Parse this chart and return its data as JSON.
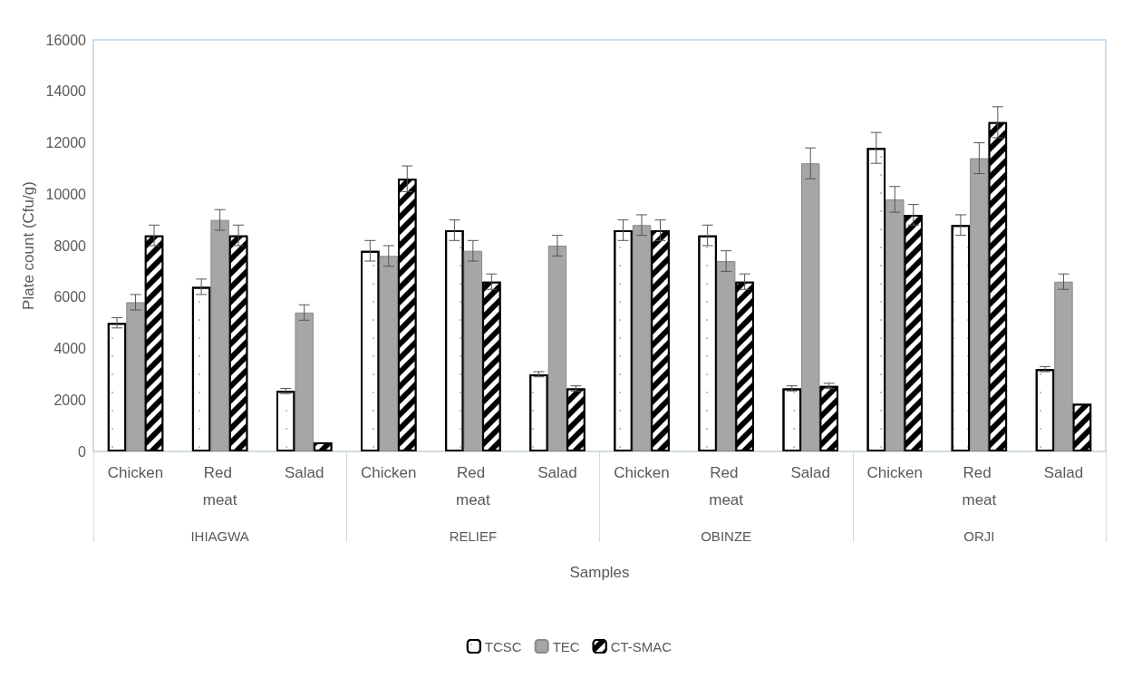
{
  "chart_data": {
    "type": "bar",
    "xlabel": "Samples",
    "ylabel": "Plate count (Cfu/g)",
    "categories": [
      "Chicken",
      "Red meat",
      "Salad",
      "Chicken",
      "Red meat",
      "Salad",
      "Chicken",
      "Red meat",
      "Salad",
      "Chicken",
      "Red meat",
      "Salad"
    ],
    "annotations": [
      "IHIAGWA",
      "RELIEF",
      "OBINZE",
      "ORJI"
    ],
    "series": [
      {
        "name": "TCSC",
        "color": "#ffffff",
        "values": [
          5000,
          6400,
          2350,
          7800,
          8600,
          3000,
          8600,
          8400,
          2450,
          11800,
          8800,
          3200
        ],
        "errors": [
          200,
          300,
          100,
          400,
          400,
          100,
          400,
          400,
          100,
          600,
          400,
          100
        ]
      },
      {
        "name": "TEC",
        "color": "#a6a6a6",
        "values": [
          5800,
          9000,
          5400,
          7600,
          7800,
          8000,
          8800,
          7400,
          11200,
          9800,
          11400,
          6600
        ],
        "errors": [
          300,
          400,
          300,
          400,
          400,
          400,
          400,
          400,
          600,
          500,
          600,
          300
        ]
      },
      {
        "name": "CT-SMAC",
        "color": "#000000",
        "values": [
          8400,
          8400,
          350,
          10600,
          6600,
          2450,
          8600,
          6600,
          2550,
          9200,
          12800,
          1850
        ],
        "errors": [
          400,
          400,
          null,
          500,
          300,
          100,
          400,
          300,
          100,
          400,
          600,
          null
        ]
      }
    ],
    "ylim": [
      0,
      16000
    ],
    "yticks": [
      0,
      2000,
      4000,
      6000,
      8000,
      10000,
      12000,
      14000,
      16000
    ],
    "grid": false,
    "legend": "bottom"
  }
}
